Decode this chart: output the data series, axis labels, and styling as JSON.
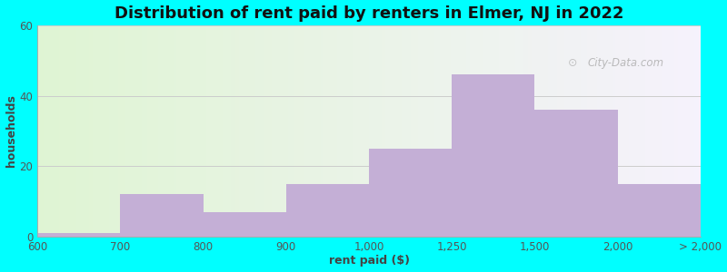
{
  "title": "Distribution of rent paid by renters in Elmer, NJ in 2022",
  "xlabel": "rent paid ($)",
  "ylabel": "households",
  "bar_heights": [
    1,
    12,
    7,
    15,
    25,
    46,
    36,
    15
  ],
  "bar_color": "#c4afd6",
  "ylim": [
    0,
    60
  ],
  "yticks": [
    0,
    20,
    40,
    60
  ],
  "background_color": "#00ffff",
  "grid_color": "#cccccc",
  "title_fontsize": 13,
  "axis_label_fontsize": 9,
  "tick_fontsize": 8.5,
  "tick_labels": [
    "600",
    "700",
    "800",
    "900",
    "1,000",
    "1,250",
    "1,500",
    "2,000",
    "> 2,000"
  ],
  "bar_width": 1.0,
  "bar_left_edges": [
    0,
    1,
    2,
    3,
    4,
    5,
    6,
    7
  ],
  "n_bars": 8,
  "watermark": "City-Data.com"
}
